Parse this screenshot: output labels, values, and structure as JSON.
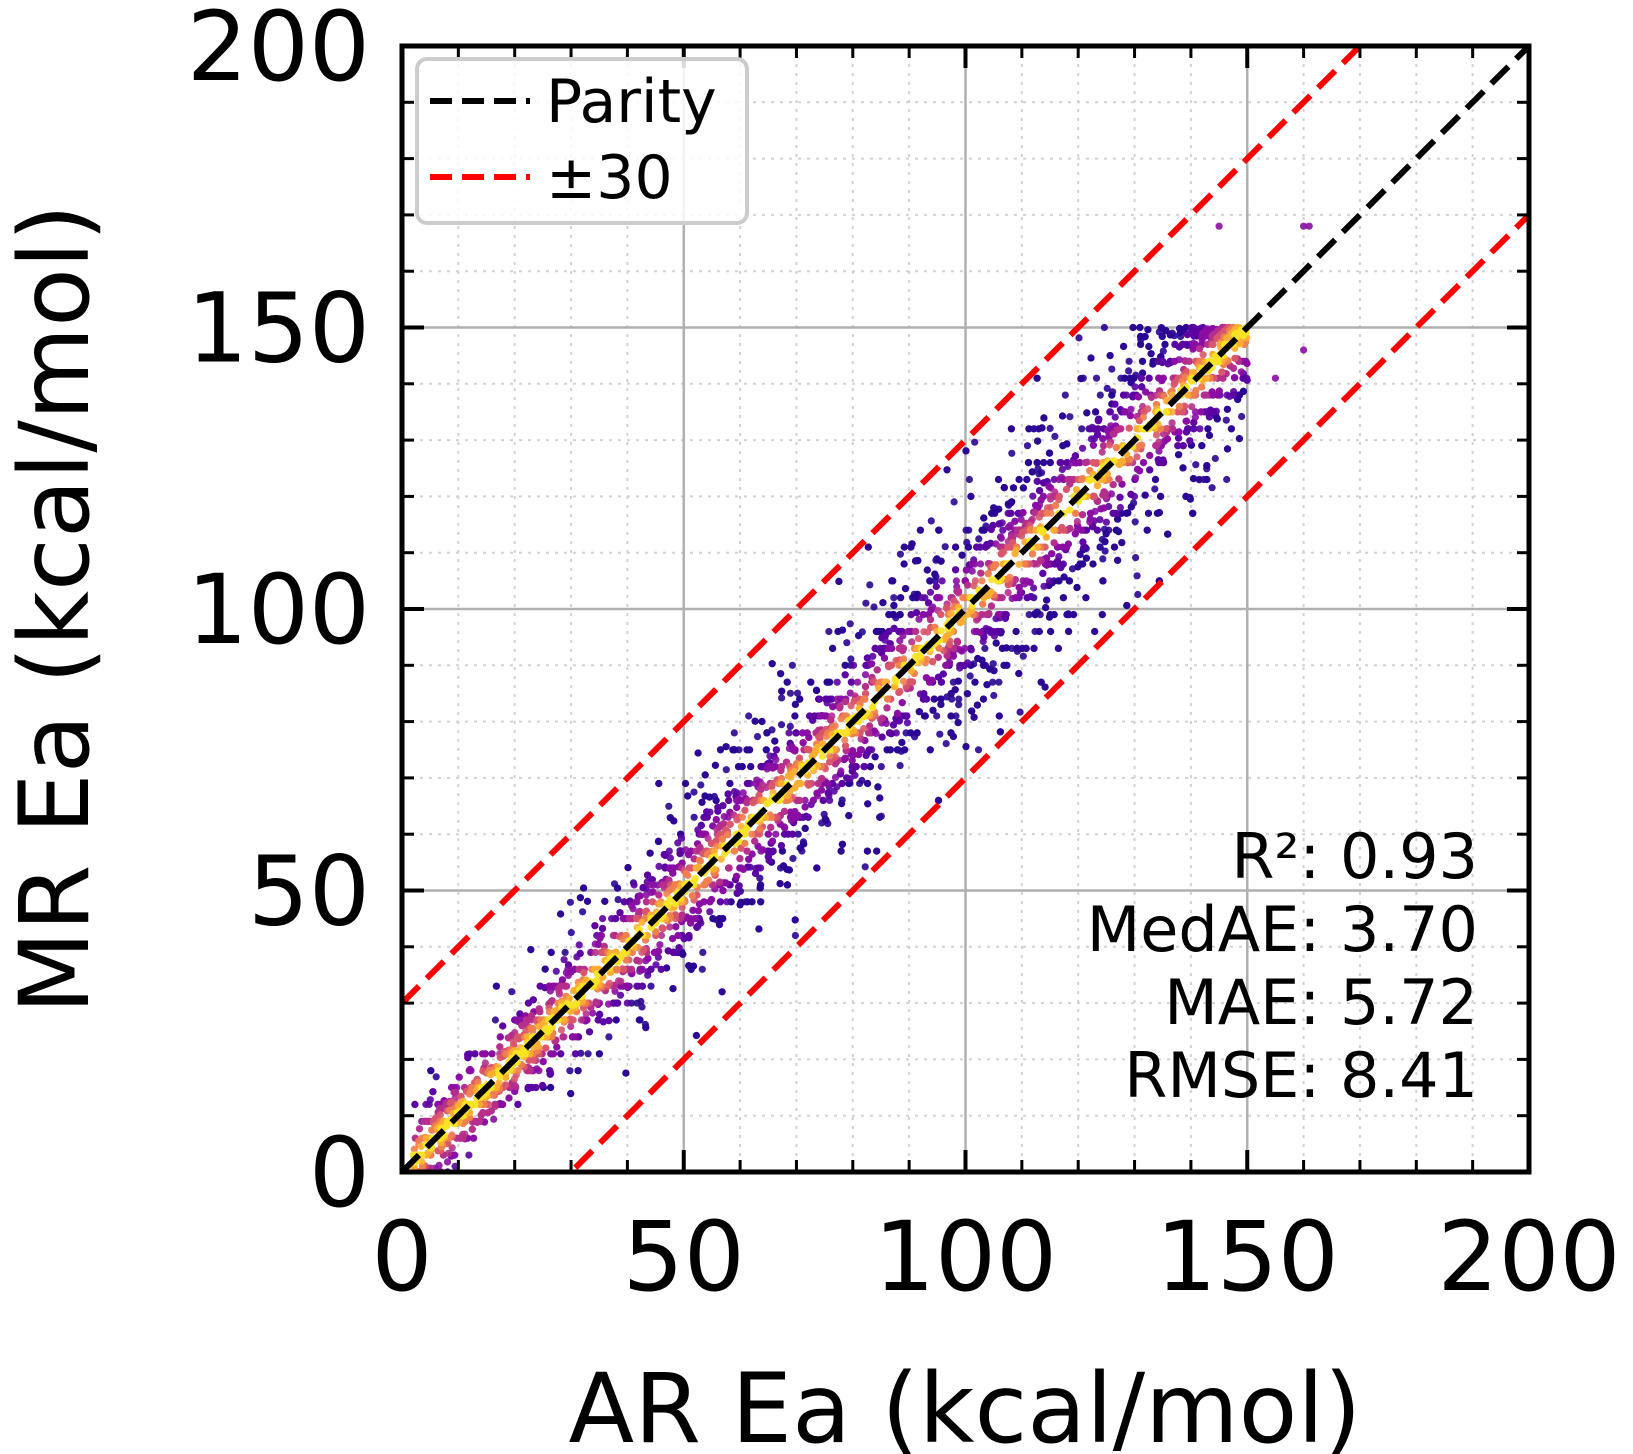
{
  "chart_data": {
    "type": "scatter",
    "title": "",
    "xlabel": "AR Ea (kcal/mol)",
    "ylabel": "MR Ea (kcal/mol)",
    "xlim": [
      0,
      200
    ],
    "ylim": [
      0,
      200
    ],
    "x_ticks": [
      0,
      50,
      100,
      150,
      200
    ],
    "y_ticks": [
      0,
      50,
      100,
      150,
      200
    ],
    "x_tick_labels": [
      "0",
      "50",
      "100",
      "150",
      "200"
    ],
    "y_tick_labels": [
      "0",
      "50",
      "100",
      "150",
      "200"
    ],
    "minor_tick_step": 10,
    "grid": true,
    "colormap": "plasma (point density)",
    "density_colors": [
      "#2a0593",
      "#5b02a3",
      "#8a0da3",
      "#b52f8c",
      "#d8576b",
      "#f07f4f",
      "#fdae32",
      "#f7e225"
    ],
    "legend": {
      "position": "top-left",
      "entries": [
        {
          "label": "Parity",
          "color": "#000000",
          "style": "dashed"
        },
        {
          "label": "±30",
          "color": "#ff0000",
          "style": "dashed"
        }
      ]
    },
    "reference_lines": [
      {
        "name": "Parity",
        "slope": 1,
        "intercept": 0,
        "color": "#000000"
      },
      {
        "name": "+30",
        "slope": 1,
        "intercept": 30,
        "color": "#ff0000"
      },
      {
        "name": "-30",
        "slope": 1,
        "intercept": -30,
        "color": "#ff0000"
      }
    ],
    "scatter_summary": {
      "x_range": [
        0,
        162
      ],
      "y_range": [
        0,
        169
      ],
      "trend": "points tightly clustered along the parity line, highest density on the diagonal"
    },
    "outliers": [
      {
        "x": 145,
        "y": 168
      },
      {
        "x": 160,
        "y": 168
      },
      {
        "x": 161,
        "y": 168
      },
      {
        "x": 160,
        "y": 146
      },
      {
        "x": 155,
        "y": 141
      }
    ],
    "metrics": [
      {
        "label": "R²: 0.93"
      },
      {
        "label": "MedAE: 3.70"
      },
      {
        "label": "MAE: 5.72"
      },
      {
        "label": "RMSE: 8.41"
      }
    ]
  }
}
